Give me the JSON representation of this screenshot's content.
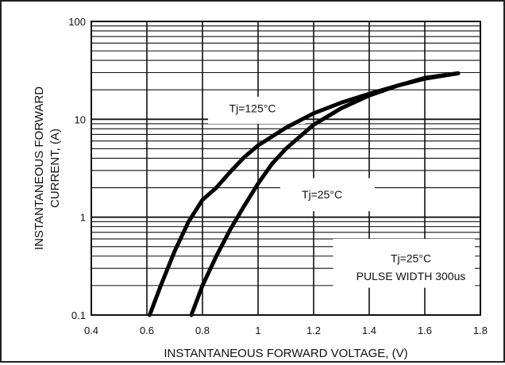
{
  "chart_data": {
    "type": "line",
    "xlabel": "INSTANTANEOUS FORWARD VOLTAGE, (V)",
    "ylabel_lines": [
      "INSTANTANEOUS FORWARD",
      "CURRENT, (A)"
    ],
    "xlim": [
      0.4,
      1.8
    ],
    "ylim": [
      0.1,
      100
    ],
    "yscale": "log",
    "grid": true,
    "x_ticks": [
      0.4,
      0.6,
      0.8,
      1.0,
      1.2,
      1.4,
      1.6,
      1.8
    ],
    "x_tick_labels": [
      "0.4",
      "0.6",
      "0.8",
      "1",
      "1.2",
      "1.4",
      "1.6",
      "1.8"
    ],
    "y_ticks": [
      0.1,
      1,
      10,
      100
    ],
    "y_tick_labels": [
      "0.1",
      "1",
      "10",
      "100"
    ],
    "series": [
      {
        "name": "Tj=125°C",
        "x": [
          0.61,
          0.65,
          0.7,
          0.75,
          0.8,
          0.85,
          0.9,
          0.95,
          1.0,
          1.1,
          1.2,
          1.3,
          1.4,
          1.5,
          1.6,
          1.72
        ],
        "y": [
          0.1,
          0.2,
          0.45,
          0.9,
          1.5,
          2.0,
          2.9,
          4.1,
          5.4,
          8.2,
          11.5,
          14.8,
          18.2,
          22.0,
          26.0,
          29.5
        ]
      },
      {
        "name": "Tj=25°C",
        "x": [
          0.76,
          0.8,
          0.85,
          0.9,
          0.95,
          1.0,
          1.05,
          1.1,
          1.2,
          1.3,
          1.4,
          1.5,
          1.6,
          1.72
        ],
        "y": [
          0.1,
          0.2,
          0.4,
          0.75,
          1.3,
          2.2,
          3.5,
          5.0,
          8.8,
          13.0,
          17.5,
          22.0,
          26.5,
          29.5
        ]
      }
    ],
    "annotations": [
      {
        "text": "Tj=125°C",
        "x": 0.98,
        "y": 13
      },
      {
        "text": "Tj=25°C",
        "x": 1.23,
        "y": 1.7
      },
      {
        "text": "Tj=25°C",
        "x": 1.55,
        "y": 0.38
      },
      {
        "text": "PULSE WIDTH 300us",
        "x": 1.55,
        "y": 0.25
      }
    ]
  }
}
